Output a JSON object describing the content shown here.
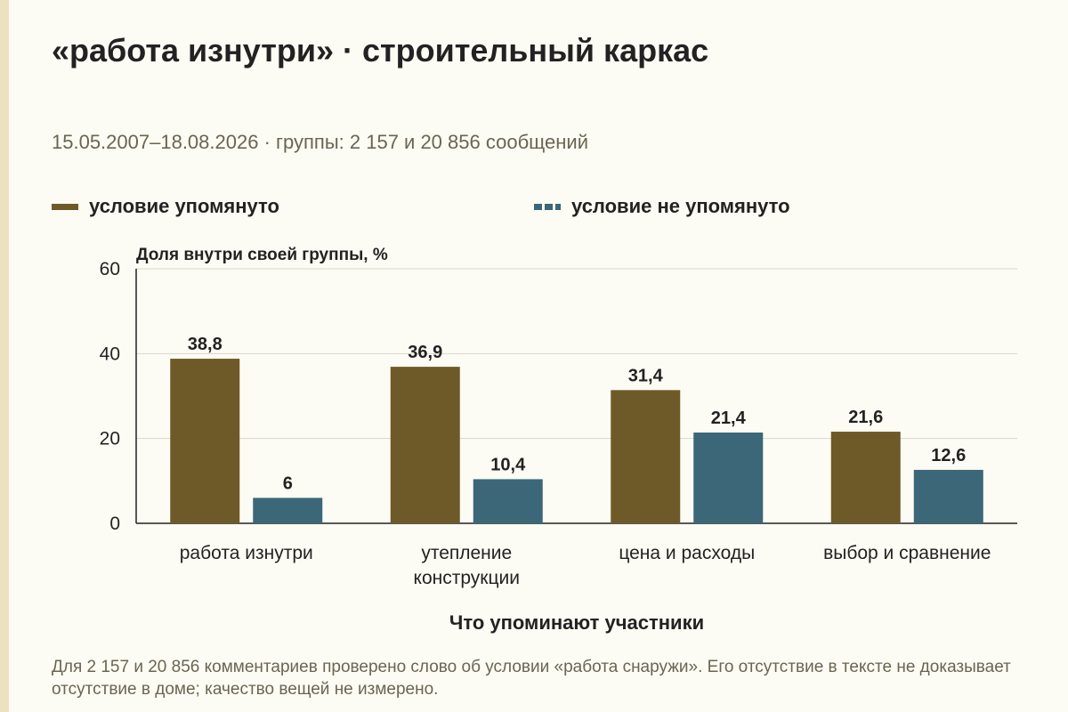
{
  "header": {
    "title": "«работа изнутри» · строительный каркас",
    "subtitle": "15.05.2007–18.08.2026 · группы: 2 157 и 20 856 сообщений"
  },
  "legend": [
    {
      "label": "условие упомянуто",
      "color": "#6e5a28",
      "style": "solid"
    },
    {
      "label": "условие не упомянуто",
      "color": "#3b6779",
      "style": "dashed"
    }
  ],
  "footnote": "Для 2 157 и 20 856 комментариев проверено слово об условии «работа снаружи». Его отсутствие в тексте не доказывает отсутствие в доме; качество вещей не измерено.",
  "chart_data": {
    "type": "bar",
    "ylabel": "Доля внутри своей группы, %",
    "xlabel": "Что упоминают участники",
    "ylim": [
      0,
      60
    ],
    "yticks": [
      0,
      20,
      40,
      60
    ],
    "grid": true,
    "legend_position": "top",
    "categories": [
      [
        "работа изнутри"
      ],
      [
        "утепление",
        "конструкции"
      ],
      [
        "цена и расходы"
      ],
      [
        "выбор и сравнение"
      ]
    ],
    "series": [
      {
        "name": "условие упомянуто",
        "color": "#6e5a28",
        "values": [
          38.8,
          36.9,
          31.4,
          21.6
        ],
        "labels": [
          "38,8",
          "36,9",
          "31,4",
          "21,6"
        ]
      },
      {
        "name": "условие не упомянуто",
        "color": "#3b6779",
        "values": [
          6,
          10.4,
          21.4,
          12.6
        ],
        "labels": [
          "6",
          "10,4",
          "21,4",
          "12,6"
        ]
      }
    ]
  }
}
